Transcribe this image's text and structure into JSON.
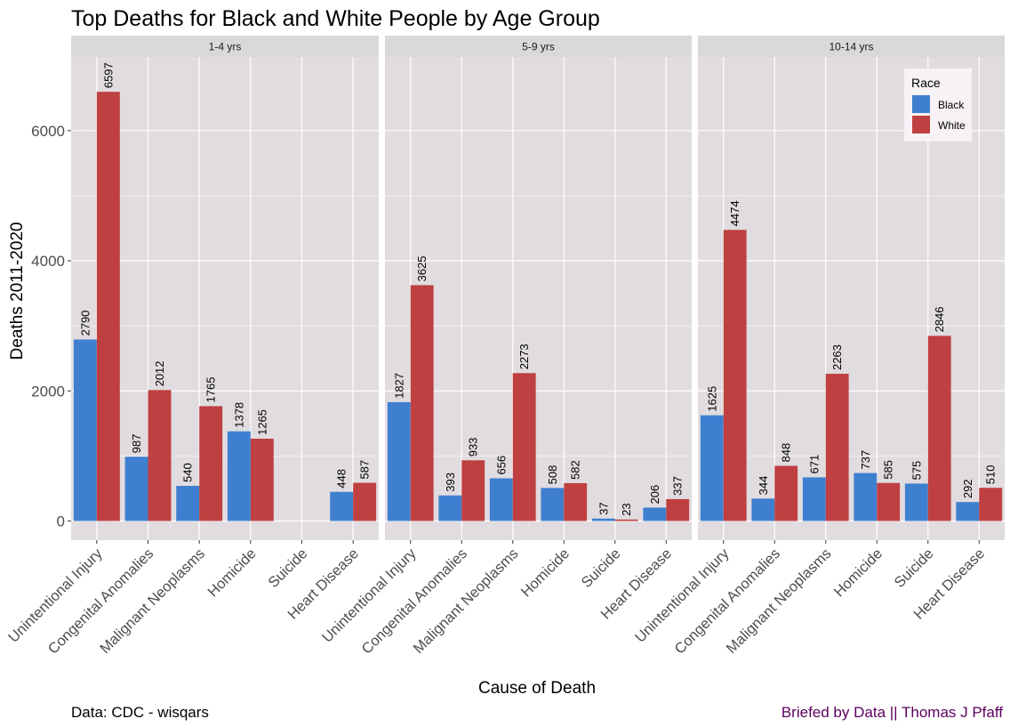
{
  "chart_data": {
    "type": "bar",
    "title": "Top Deaths for Black and White People by Age Group",
    "xlabel": "Cause of Death",
    "ylabel": "Deaths 2011-2020",
    "ylim": [
      0,
      7000
    ],
    "yticks": [
      0,
      2000,
      4000,
      6000
    ],
    "grid": true,
    "legend": {
      "title": "Race",
      "placement": "top-right"
    },
    "categories": [
      "Unintentional Injury",
      "Congenital Anomalies",
      "Malignant Neoplasms",
      "Homicide",
      "Suicide",
      "Heart Disease"
    ],
    "series_meta": [
      {
        "name": "Black",
        "color": "#3f7fcf"
      },
      {
        "name": "White",
        "color": "#bf4040"
      }
    ],
    "panels": [
      {
        "label": "1-4 yrs",
        "series": [
          {
            "name": "Black",
            "values": [
              2790,
              987,
              540,
              1378,
              null,
              448
            ]
          },
          {
            "name": "White",
            "values": [
              6597,
              2012,
              1765,
              1265,
              null,
              587
            ]
          }
        ]
      },
      {
        "label": "5-9 yrs",
        "series": [
          {
            "name": "Black",
            "values": [
              1827,
              393,
              656,
              508,
              37,
              206
            ]
          },
          {
            "name": "White",
            "values": [
              3625,
              933,
              2273,
              582,
              23,
              337
            ]
          }
        ]
      },
      {
        "label": "10-14 yrs",
        "series": [
          {
            "name": "Black",
            "values": [
              1625,
              344,
              671,
              737,
              575,
              292
            ]
          },
          {
            "name": "White",
            "values": [
              4474,
              848,
              2263,
              585,
              2846,
              510
            ]
          }
        ]
      }
    ]
  },
  "caption": {
    "source": "Data: CDC - wisqars",
    "credit": "Briefed by Data || Thomas J Pfaff"
  },
  "colors": {
    "panel_bg": "#e0dce0",
    "strip_bg": "#d9d9d9",
    "grid": "#ffffff",
    "legend_bg": "#f6f2f6"
  }
}
